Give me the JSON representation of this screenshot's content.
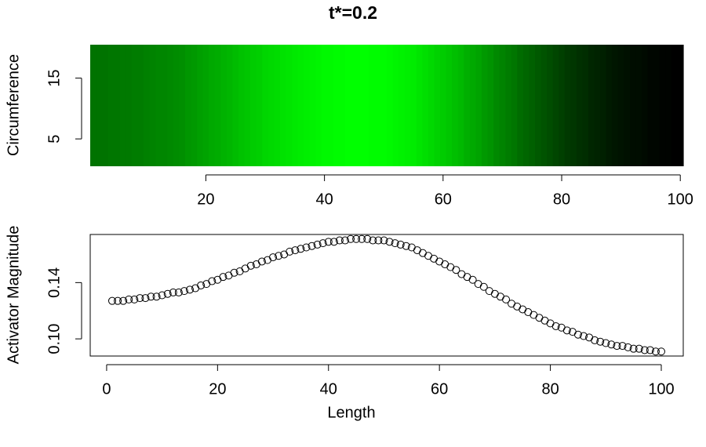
{
  "chart_data": [
    {
      "type": "heatmap",
      "title": "t*=0.2",
      "y_label": "Circumference",
      "x": [
        1,
        2,
        3,
        4,
        5,
        6,
        7,
        8,
        9,
        10,
        11,
        12,
        13,
        14,
        15,
        16,
        17,
        18,
        19,
        20,
        21,
        22,
        23,
        24,
        25,
        26,
        27,
        28,
        29,
        30,
        31,
        32,
        33,
        34,
        35,
        36,
        37,
        38,
        39,
        40,
        41,
        42,
        43,
        44,
        45,
        46,
        47,
        48,
        49,
        50,
        51,
        52,
        53,
        54,
        55,
        56,
        57,
        58,
        59,
        60,
        61,
        62,
        63,
        64,
        65,
        66,
        67,
        68,
        69,
        70,
        71,
        72,
        73,
        74,
        75,
        76,
        77,
        78,
        79,
        80,
        81,
        82,
        83,
        84,
        85,
        86,
        87,
        88,
        89,
        90,
        91,
        92,
        93,
        94,
        95,
        96,
        97,
        98,
        99,
        100
      ],
      "values": [
        0.127,
        0.127,
        0.127,
        0.128,
        0.128,
        0.129,
        0.129,
        0.13,
        0.13,
        0.131,
        0.132,
        0.133,
        0.133,
        0.134,
        0.135,
        0.136,
        0.138,
        0.139,
        0.141,
        0.142,
        0.144,
        0.145,
        0.147,
        0.148,
        0.15,
        0.152,
        0.153,
        0.155,
        0.156,
        0.158,
        0.159,
        0.16,
        0.162,
        0.163,
        0.164,
        0.165,
        0.166,
        0.167,
        0.168,
        0.169,
        0.169,
        0.17,
        0.17,
        0.171,
        0.171,
        0.171,
        0.171,
        0.17,
        0.17,
        0.17,
        0.169,
        0.168,
        0.167,
        0.166,
        0.165,
        0.163,
        0.161,
        0.159,
        0.157,
        0.155,
        0.153,
        0.151,
        0.149,
        0.146,
        0.144,
        0.142,
        0.139,
        0.137,
        0.134,
        0.132,
        0.13,
        0.128,
        0.125,
        0.123,
        0.121,
        0.119,
        0.117,
        0.115,
        0.113,
        0.111,
        0.109,
        0.108,
        0.106,
        0.105,
        0.103,
        0.102,
        0.101,
        0.099,
        0.098,
        0.097,
        0.096,
        0.095,
        0.095,
        0.094,
        0.093,
        0.093,
        0.092,
        0.092,
        0.091,
        0.091
      ],
      "colors": [
        "#000000",
        "#00ff00"
      ],
      "xlim": [
        0.5,
        100.5
      ],
      "ylim": [
        0.5,
        20.5
      ],
      "xticks": [
        20,
        40,
        60,
        80,
        100
      ],
      "yticks": [
        5,
        15
      ]
    },
    {
      "type": "scatter",
      "x_label": "Length",
      "y_label": "Activator Magnitude",
      "color": "#000000",
      "x": [
        1,
        2,
        3,
        4,
        5,
        6,
        7,
        8,
        9,
        10,
        11,
        12,
        13,
        14,
        15,
        16,
        17,
        18,
        19,
        20,
        21,
        22,
        23,
        24,
        25,
        26,
        27,
        28,
        29,
        30,
        31,
        32,
        33,
        34,
        35,
        36,
        37,
        38,
        39,
        40,
        41,
        42,
        43,
        44,
        45,
        46,
        47,
        48,
        49,
        50,
        51,
        52,
        53,
        54,
        55,
        56,
        57,
        58,
        59,
        60,
        61,
        62,
        63,
        64,
        65,
        66,
        67,
        68,
        69,
        70,
        71,
        72,
        73,
        74,
        75,
        76,
        77,
        78,
        79,
        80,
        81,
        82,
        83,
        84,
        85,
        86,
        87,
        88,
        89,
        90,
        91,
        92,
        93,
        94,
        95,
        96,
        97,
        98,
        99,
        100
      ],
      "values": [
        0.127,
        0.127,
        0.127,
        0.128,
        0.128,
        0.129,
        0.129,
        0.13,
        0.13,
        0.131,
        0.132,
        0.133,
        0.133,
        0.134,
        0.135,
        0.136,
        0.138,
        0.139,
        0.141,
        0.142,
        0.144,
        0.145,
        0.147,
        0.148,
        0.15,
        0.152,
        0.153,
        0.155,
        0.156,
        0.158,
        0.159,
        0.16,
        0.162,
        0.163,
        0.164,
        0.165,
        0.166,
        0.167,
        0.168,
        0.169,
        0.169,
        0.17,
        0.17,
        0.171,
        0.171,
        0.171,
        0.171,
        0.17,
        0.17,
        0.17,
        0.169,
        0.168,
        0.167,
        0.166,
        0.165,
        0.163,
        0.161,
        0.159,
        0.157,
        0.155,
        0.153,
        0.151,
        0.149,
        0.146,
        0.144,
        0.142,
        0.139,
        0.137,
        0.134,
        0.132,
        0.13,
        0.128,
        0.125,
        0.123,
        0.121,
        0.119,
        0.117,
        0.115,
        0.113,
        0.111,
        0.109,
        0.108,
        0.106,
        0.105,
        0.103,
        0.102,
        0.101,
        0.099,
        0.098,
        0.097,
        0.096,
        0.095,
        0.095,
        0.094,
        0.093,
        0.093,
        0.092,
        0.092,
        0.091,
        0.091
      ],
      "xlim": [
        -2.96,
        103.96
      ],
      "ylim": [
        0.0878,
        0.1742
      ],
      "xticks": [
        0,
        20,
        40,
        60,
        80,
        100
      ],
      "yticks": [
        {
          "value": 0.1,
          "label": "0.10"
        },
        0.14
      ]
    }
  ]
}
